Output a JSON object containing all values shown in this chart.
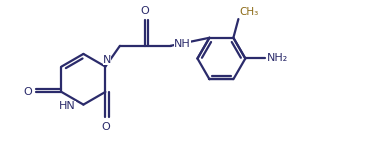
{
  "bond_color": "#2b2b6b",
  "text_color": "#2b2b6b",
  "ch3_color": "#8B6914",
  "bg_color": "#ffffff",
  "line_width": 1.6,
  "figsize": [
    3.71,
    1.55
  ],
  "dpi": 100,
  "xlim": [
    0,
    10.5
  ],
  "ylim": [
    0,
    4.2
  ],
  "font_size": 8.0
}
